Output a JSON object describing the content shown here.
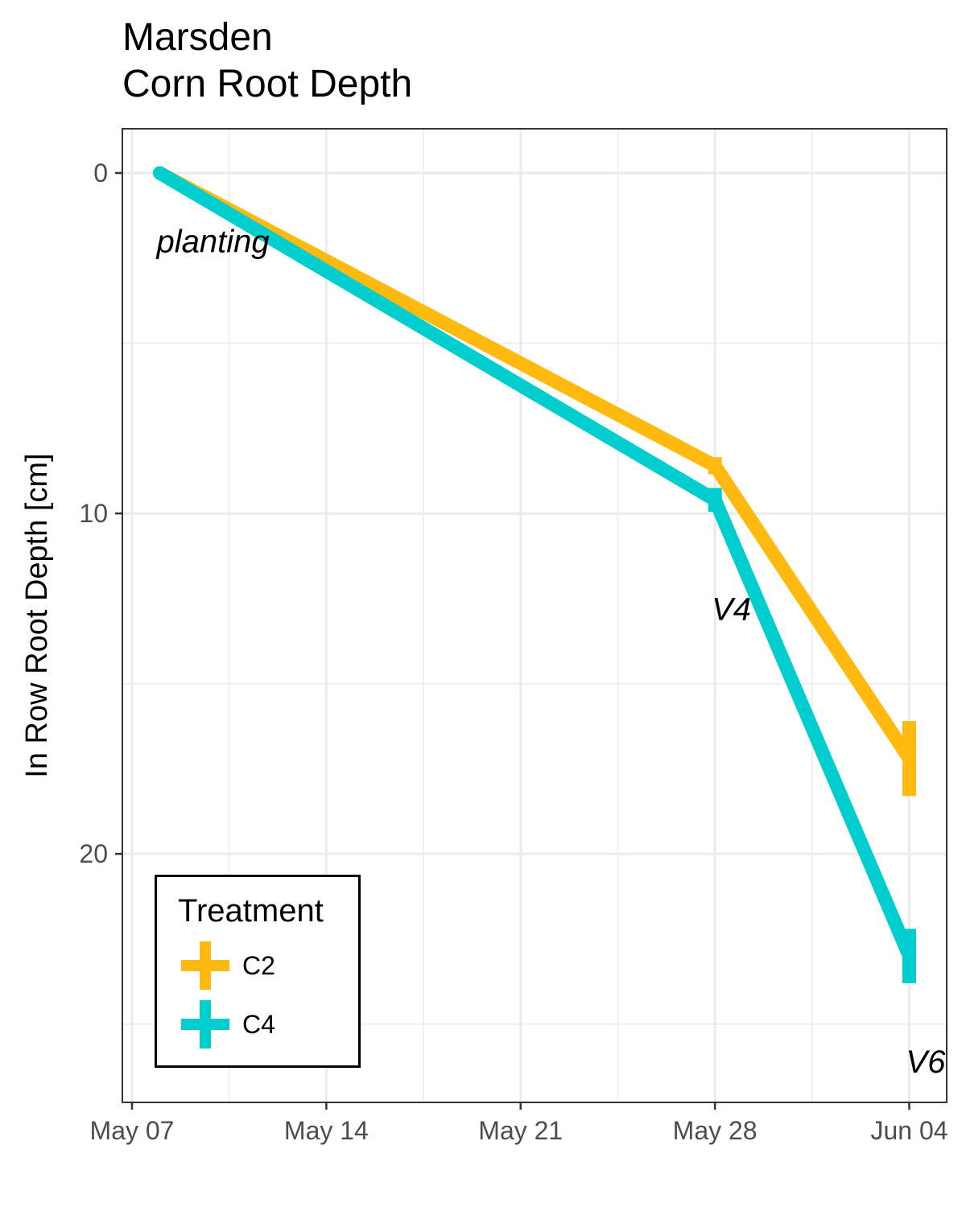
{
  "chart_data": {
    "type": "line",
    "title": "Marsden",
    "subtitle": "Corn Root Depth",
    "xlabel": "",
    "ylabel": "In Row Root Depth [cm]",
    "x_is_date": true,
    "x_ticks": [
      {
        "date": "2018-05-07",
        "label": "May 07"
      },
      {
        "date": "2018-05-14",
        "label": "May 14"
      },
      {
        "date": "2018-05-21",
        "label": "May 21"
      },
      {
        "date": "2018-05-28",
        "label": "May 28"
      },
      {
        "date": "2018-06-04",
        "label": "Jun 04"
      }
    ],
    "xlim": [
      "2018-05-07",
      "2018-06-05"
    ],
    "y_ticks": [
      0,
      10,
      20
    ],
    "ylim": [
      -1.3,
      27.3
    ],
    "y_reversed": true,
    "grid": true,
    "legend": {
      "title": "Treatment",
      "position": "bottom-left"
    },
    "series": [
      {
        "name": "C2",
        "color": "#FFB90F",
        "points": [
          {
            "date": "2018-05-08",
            "y": 0.0,
            "err": 0
          },
          {
            "date": "2018-05-28",
            "y": 8.6,
            "err": 0.25
          },
          {
            "date": "2018-06-04",
            "y": 17.2,
            "err": 1.1
          }
        ]
      },
      {
        "name": "C4",
        "color": "#00CDCD",
        "points": [
          {
            "date": "2018-05-08",
            "y": 0.0,
            "err": 0
          },
          {
            "date": "2018-05-28",
            "y": 9.6,
            "err": 0.35
          },
          {
            "date": "2018-06-04",
            "y": 23.0,
            "err": 0.8
          }
        ]
      }
    ],
    "annotations": [
      {
        "text": "planting",
        "date": "2018-05-08",
        "y": 2.0
      },
      {
        "text": "V4",
        "date": "2018-05-28",
        "y": 12.8
      },
      {
        "text": "V6",
        "date": "2018-06-04",
        "y": 26.1
      }
    ]
  }
}
